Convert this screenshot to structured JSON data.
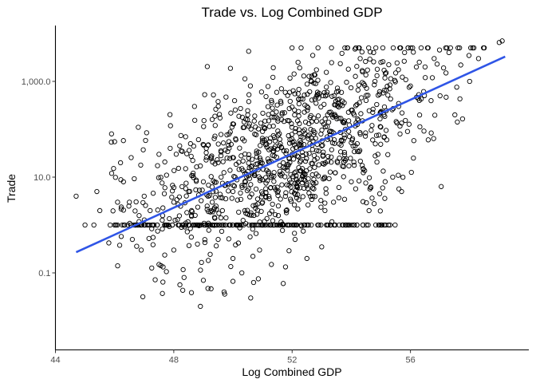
{
  "chart_data": {
    "type": "scatter",
    "title": "Trade vs. Log Combined GDP",
    "xlabel": "Log Combined GDP",
    "ylabel": "Trade",
    "x_scale": "linear",
    "y_scale": "log10",
    "xlim": [
      44,
      60
    ],
    "ylim": [
      0.02,
      10000
    ],
    "x_ticks": [
      44,
      48,
      52,
      56
    ],
    "x_tick_labels": [
      "44",
      "48",
      "52",
      "56"
    ],
    "y_ticks": [
      0.1,
      10,
      1000
    ],
    "y_tick_labels": [
      "0.1",
      "10.0",
      "1,000.0"
    ],
    "grid": false,
    "legend": "none",
    "point_color": "#000000",
    "fit_color": "#2F55E6",
    "fit_line": {
      "x": [
        44.7,
        59.2
      ],
      "y": [
        0.27,
        3300
      ]
    },
    "floor_value": 1.0,
    "points": [
      {
        "x": 44.7,
        "y": 4.0
      },
      {
        "x": 45.0,
        "y": 1.0
      },
      {
        "x": 45.3,
        "y": 1.0
      },
      {
        "x": 45.4,
        "y": 5.0
      },
      {
        "x": 45.5,
        "y": 2.0
      },
      {
        "x": 45.9,
        "y": 12.0
      },
      {
        "x": 46.0,
        "y": 55.0
      },
      {
        "x": 46.0,
        "y": 1.0
      },
      {
        "x": 46.1,
        "y": 3.0
      },
      {
        "x": 46.2,
        "y": 20.0
      },
      {
        "x": 46.3,
        "y": 8.0
      },
      {
        "x": 46.5,
        "y": 3.0
      },
      {
        "x": 46.6,
        "y": 0.5
      },
      {
        "x": 46.7,
        "y": 1.0
      },
      {
        "x": 46.8,
        "y": 110.0
      },
      {
        "x": 46.9,
        "y": 0.3
      },
      {
        "x": 47.0,
        "y": 4.0
      },
      {
        "x": 47.0,
        "y": 1.0
      },
      {
        "x": 47.2,
        "y": 2.0
      },
      {
        "x": 47.3,
        "y": 0.55
      },
      {
        "x": 47.5,
        "y": 0.15
      },
      {
        "x": 47.5,
        "y": 30.0
      },
      {
        "x": 47.7,
        "y": 6.0
      },
      {
        "x": 47.8,
        "y": 1.0
      },
      {
        "x": 48.0,
        "y": 3.0
      },
      {
        "x": 48.0,
        "y": 0.3
      },
      {
        "x": 48.2,
        "y": 45.0
      },
      {
        "x": 48.3,
        "y": 1.0
      },
      {
        "x": 48.4,
        "y": 15.0
      },
      {
        "x": 48.5,
        "y": 5.0
      },
      {
        "x": 48.6,
        "y": 2.0
      },
      {
        "x": 48.7,
        "y": 300.0
      },
      {
        "x": 48.8,
        "y": 0.4
      },
      {
        "x": 48.8,
        "y": 1.0
      },
      {
        "x": 48.9,
        "y": 0.02
      },
      {
        "x": 49.0,
        "y": 0.07
      },
      {
        "x": 49.0,
        "y": 8.0
      },
      {
        "x": 49.1,
        "y": 40.0
      },
      {
        "x": 49.2,
        "y": 1.0
      },
      {
        "x": 49.3,
        "y": 3.0
      },
      {
        "x": 49.4,
        "y": 120.0
      },
      {
        "x": 49.5,
        "y": 0.5
      },
      {
        "x": 49.6,
        "y": 10.0
      },
      {
        "x": 49.7,
        "y": 0.04
      },
      {
        "x": 49.8,
        "y": 25.0
      },
      {
        "x": 49.9,
        "y": 1.0
      },
      {
        "x": 50.0,
        "y": 0.2
      },
      {
        "x": 50.0,
        "y": 5.0
      },
      {
        "x": 50.1,
        "y": 60.0
      },
      {
        "x": 50.2,
        "y": 1.0
      },
      {
        "x": 50.3,
        "y": 0.1
      },
      {
        "x": 50.3,
        "y": 15.0
      },
      {
        "x": 50.4,
        "y": 2.0
      },
      {
        "x": 50.5,
        "y": 200.0
      },
      {
        "x": 50.6,
        "y": 0.03
      },
      {
        "x": 50.6,
        "y": 7.0
      },
      {
        "x": 50.7,
        "y": 1.0
      },
      {
        "x": 50.8,
        "y": 35.0
      },
      {
        "x": 50.9,
        "y": 0.3
      },
      {
        "x": 51.0,
        "y": 3.0
      },
      {
        "x": 51.0,
        "y": 90.0
      },
      {
        "x": 51.1,
        "y": 1.0
      },
      {
        "x": 51.2,
        "y": 12.0
      },
      {
        "x": 51.3,
        "y": 0.15
      },
      {
        "x": 51.3,
        "y": 400.0
      },
      {
        "x": 51.4,
        "y": 6.0
      },
      {
        "x": 51.5,
        "y": 1.0
      },
      {
        "x": 51.6,
        "y": 50.0
      },
      {
        "x": 51.7,
        "y": 0.06
      },
      {
        "x": 51.7,
        "y": 20.0
      },
      {
        "x": 51.8,
        "y": 2.0
      },
      {
        "x": 51.9,
        "y": 150.0
      },
      {
        "x": 52.0,
        "y": 1.0
      },
      {
        "x": 52.0,
        "y": 30.0
      },
      {
        "x": 52.1,
        "y": 0.5
      },
      {
        "x": 52.2,
        "y": 8.0
      },
      {
        "x": 52.2,
        "y": 2500.0
      },
      {
        "x": 52.3,
        "y": 70.0
      },
      {
        "x": 52.4,
        "y": 1.0
      },
      {
        "x": 52.5,
        "y": 300.0
      },
      {
        "x": 52.5,
        "y": 0.2
      },
      {
        "x": 52.6,
        "y": 15.0
      },
      {
        "x": 52.7,
        "y": 4.0
      },
      {
        "x": 52.8,
        "y": 900.0
      },
      {
        "x": 52.9,
        "y": 1.0
      },
      {
        "x": 53.0,
        "y": 45.0
      },
      {
        "x": 53.0,
        "y": 0.35
      },
      {
        "x": 53.1,
        "y": 10.0
      },
      {
        "x": 53.2,
        "y": 200.0
      },
      {
        "x": 53.3,
        "y": 1.0
      },
      {
        "x": 53.4,
        "y": 3.0
      },
      {
        "x": 53.5,
        "y": 600.0
      },
      {
        "x": 53.6,
        "y": 25.0
      },
      {
        "x": 53.7,
        "y": 1.0
      },
      {
        "x": 53.8,
        "y": 100.0
      },
      {
        "x": 53.9,
        "y": 1800.0
      },
      {
        "x": 54.0,
        "y": 8.0
      },
      {
        "x": 54.0,
        "y": 250.0
      },
      {
        "x": 54.1,
        "y": 1.0
      },
      {
        "x": 54.2,
        "y": 50.0
      },
      {
        "x": 54.3,
        "y": 3000.0
      },
      {
        "x": 54.4,
        "y": 15.0
      },
      {
        "x": 54.5,
        "y": 400.0
      },
      {
        "x": 54.6,
        "y": 2.0
      },
      {
        "x": 54.7,
        "y": 120.0
      },
      {
        "x": 54.8,
        "y": 1000.0
      },
      {
        "x": 54.9,
        "y": 30.0
      },
      {
        "x": 55.0,
        "y": 1.0
      },
      {
        "x": 55.0,
        "y": 2500.0
      },
      {
        "x": 55.1,
        "y": 200.0
      },
      {
        "x": 55.2,
        "y": 60.0
      },
      {
        "x": 55.3,
        "y": 700.0
      },
      {
        "x": 55.4,
        "y": 10.0
      },
      {
        "x": 55.5,
        "y": 1500.0
      },
      {
        "x": 55.6,
        "y": 300.0
      },
      {
        "x": 55.7,
        "y": 5.0
      },
      {
        "x": 55.8,
        "y": 4000.0
      },
      {
        "x": 55.9,
        "y": 90.0
      },
      {
        "x": 56.0,
        "y": 800.0
      },
      {
        "x": 56.1,
        "y": 25.0
      },
      {
        "x": 56.2,
        "y": 2000.0
      },
      {
        "x": 56.3,
        "y": 400.0
      },
      {
        "x": 56.5,
        "y": 1200.0
      },
      {
        "x": 56.6,
        "y": 60.0
      },
      {
        "x": 56.8,
        "y": 3000.0
      },
      {
        "x": 57.0,
        "y": 500.0
      },
      {
        "x": 57.2,
        "y": 1500.0
      },
      {
        "x": 57.3,
        "y": 4000.0
      },
      {
        "x": 57.5,
        "y": 200.0
      },
      {
        "x": 57.7,
        "y": 2200.0
      },
      {
        "x": 58.0,
        "y": 1000.0
      },
      {
        "x": 58.1,
        "y": 5000.0
      },
      {
        "x": 58.3,
        "y": 3000.0
      },
      {
        "x": 59.0,
        "y": 6500.0
      },
      {
        "x": 59.1,
        "y": 7000.0
      }
    ]
  }
}
